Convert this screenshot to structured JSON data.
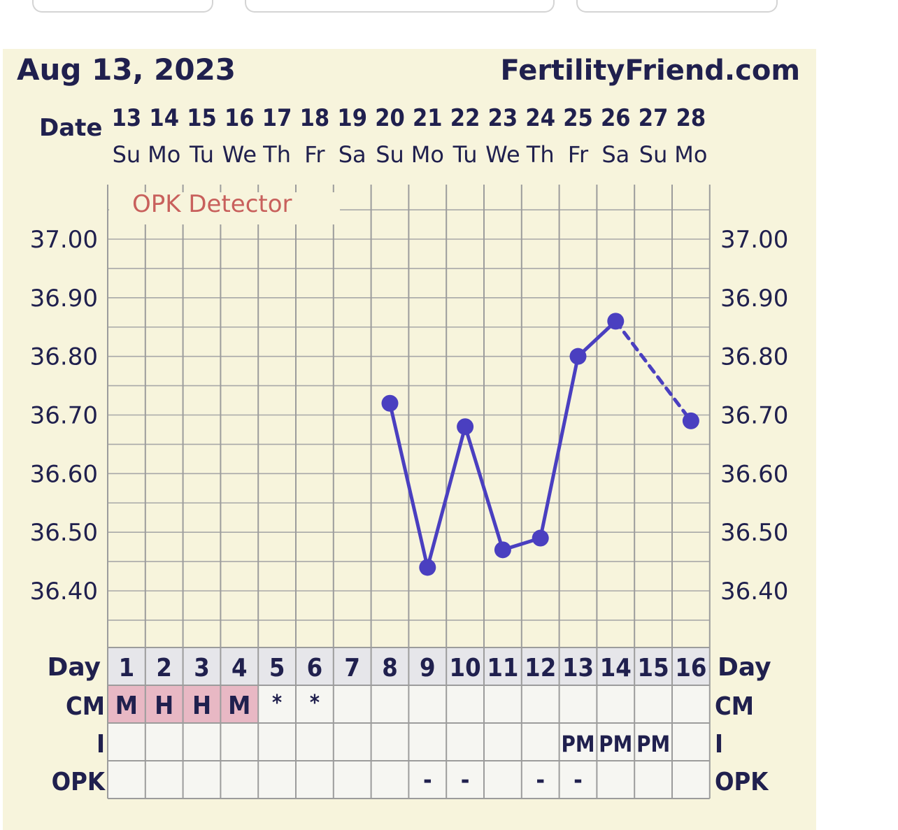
{
  "header": {
    "date": "Aug 13, 2023",
    "site": "FertilityFriend.com"
  },
  "labels": {
    "date": "Date",
    "day": "Day",
    "cm": "CM",
    "intercourse": "I",
    "opk": "OPK",
    "detector": "OPK Detector"
  },
  "colors": {
    "line": "#4a3fc0",
    "background": "#f7f4dc",
    "text": "#20204e",
    "cm_highlight": "#e8b8c4",
    "detector": "#c8605c"
  },
  "chart_data": {
    "type": "line",
    "dates": [
      "13",
      "14",
      "15",
      "16",
      "17",
      "18",
      "19",
      "20",
      "21",
      "22",
      "23",
      "24",
      "25",
      "26",
      "27",
      "28"
    ],
    "weekdays": [
      "Su",
      "Mo",
      "Tu",
      "We",
      "Th",
      "Fr",
      "Sa",
      "Su",
      "Mo",
      "Tu",
      "We",
      "Th",
      "Fr",
      "Sa",
      "Su",
      "Mo"
    ],
    "cycle_days": [
      "1",
      "2",
      "3",
      "4",
      "5",
      "6",
      "7",
      "8",
      "9",
      "10",
      "11",
      "12",
      "13",
      "14",
      "15",
      "16"
    ],
    "ylim": [
      36.34,
      37.09
    ],
    "y_ticks": [
      "37.00",
      "36.90",
      "36.80",
      "36.70",
      "36.60",
      "36.50",
      "36.40"
    ],
    "series": [
      {
        "values": [
          null,
          null,
          null,
          null,
          null,
          null,
          null,
          36.72,
          36.44,
          36.68,
          36.47,
          36.49,
          36.8,
          36.86,
          null,
          36.69
        ]
      }
    ],
    "cm": [
      "M",
      "H",
      "H",
      "M",
      "*",
      "*",
      "",
      "",
      "",
      "",
      "",
      "",
      "",
      "",
      "",
      ""
    ],
    "intercourse": [
      "",
      "",
      "",
      "",
      "",
      "",
      "",
      "",
      "",
      "",
      "",
      "",
      "PM",
      "PM",
      "PM",
      ""
    ],
    "opk": [
      "",
      "",
      "",
      "",
      "",
      "",
      "",
      "",
      "-",
      "-",
      "",
      "-",
      "-",
      "",
      "",
      ""
    ]
  }
}
